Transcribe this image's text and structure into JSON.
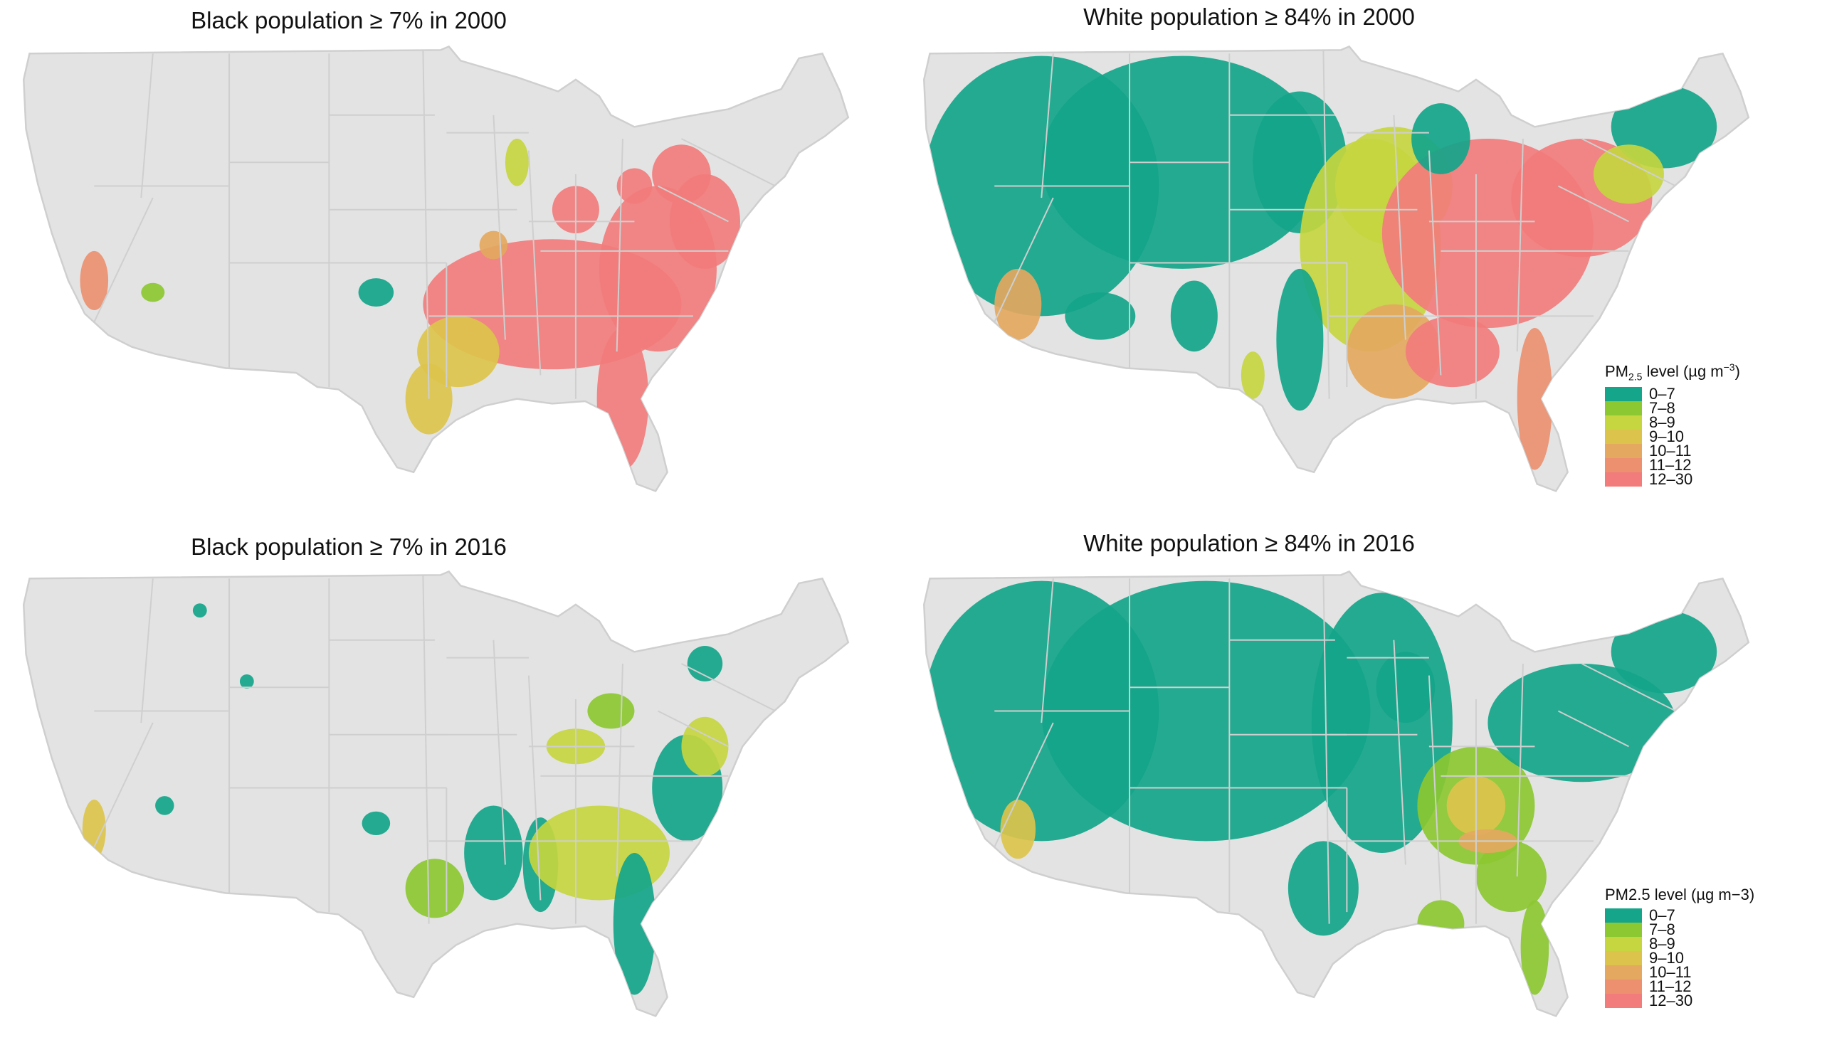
{
  "panels": [
    {
      "title": "Black population ≥ 7% in 2000",
      "group": "black",
      "year": "2000"
    },
    {
      "title": "White population ≥ 84% in 2000",
      "group": "white",
      "year": "2000"
    },
    {
      "title": "Black population ≥ 7% in 2016",
      "group": "black",
      "year": "2016"
    },
    {
      "title": "White population ≥ 84% in 2016",
      "group": "white",
      "year": "2016"
    }
  ],
  "legend": {
    "title_pre": "PM",
    "title_sub": "2.5",
    "title_post": " level (µg m",
    "title_sup": "−3",
    "title_end": ")",
    "categories": [
      {
        "label": "0–7",
        "color": "#14a58a"
      },
      {
        "label": "7–8",
        "color": "#8cc832"
      },
      {
        "label": "8–9",
        "color": "#c5d640"
      },
      {
        "label": "9–10",
        "color": "#dcc44c"
      },
      {
        "label": "10–11",
        "color": "#e4a860"
      },
      {
        "label": "11–12",
        "color": "#ec9070"
      },
      {
        "label": "12–30",
        "color": "#f27c7c"
      }
    ]
  },
  "chart_data": {
    "type": "choropleth-map",
    "panels": [
      {
        "title": "Black population ≥ 7% in 2000",
        "dominant_category_southeast": "12–30",
        "dominant_category_texas": "9–10"
      },
      {
        "title": "White population ≥ 84% in 2000",
        "dominant_category_west": "0–7",
        "dominant_category_midwest_east": "12–30"
      },
      {
        "title": "Black population ≥ 7% in 2016",
        "dominant_category_southeast": "8–9",
        "dominant_category_mississippi_carolinas": "0–7"
      },
      {
        "title": "White population ≥ 84% in 2016",
        "dominant_category_most": "0–7",
        "dominant_category_ohio_valley": "7–8"
      }
    ],
    "legend_title": "PM2.5 level (µg m−3)",
    "legend_categories": [
      "0–7",
      "7–8",
      "8–9",
      "9–10",
      "10–11",
      "11–12",
      "12–30"
    ],
    "background_color": "#e3e3e3",
    "border_color": "#cfcfcf"
  }
}
